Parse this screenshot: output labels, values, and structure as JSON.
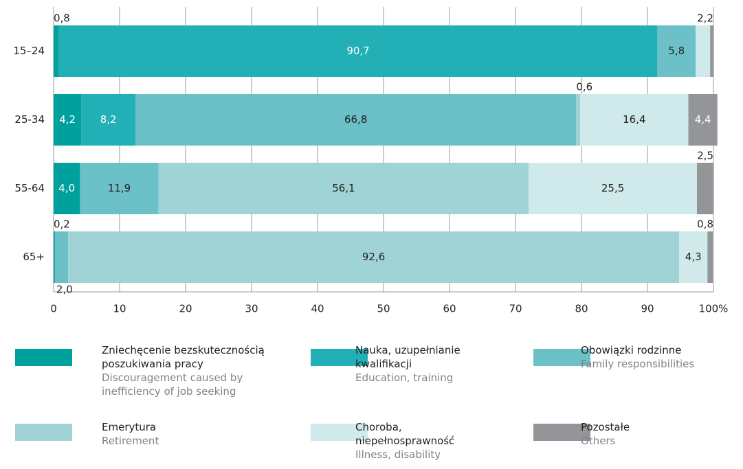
{
  "chart_data": {
    "type": "stacked-barh",
    "categories": [
      "15–24",
      "25-34",
      "55-64",
      "65+"
    ],
    "series": [
      {
        "name": "Zniechęcenie bezskutecznością poszukiwania pracy",
        "name_en": "Discouragement caused by inefficiency of job seeking",
        "color": "#00a19d",
        "values": [
          0.8,
          4.2,
          4.0,
          0.2
        ],
        "value_labels": [
          "0,8",
          "4,2",
          "4,0",
          "0,2"
        ]
      },
      {
        "name": "Nauka, uzupełnianie kwalifikacji",
        "name_en": "Education, training",
        "color": "#23afb6",
        "values": [
          90.7,
          8.2,
          null,
          null
        ],
        "value_labels": [
          "90,7",
          "8,2",
          null,
          null
        ]
      },
      {
        "name": "Obowiązki rodzinne",
        "name_en": "Family  responsibilities",
        "color": "#6cc0c7",
        "values": [
          5.8,
          66.8,
          11.9,
          2.0
        ],
        "value_labels": [
          "5,8",
          "66,8",
          "11,9",
          "2,0"
        ]
      },
      {
        "name": "Emerytura",
        "name_en": "Retirement",
        "color": "#9fd3d5",
        "values": [
          null,
          0.6,
          56.1,
          92.6
        ],
        "value_labels": [
          null,
          "0,6",
          "56,1",
          "92,6"
        ]
      },
      {
        "name": "Choroba, niepełnosprawność",
        "name_en": "Illness, disability",
        "color": "#d0e9eb",
        "values": [
          2.2,
          16.4,
          25.5,
          4.3
        ],
        "value_labels": [
          "2,2",
          "16,4",
          "25,5",
          "4,3"
        ]
      },
      {
        "name": "Pozostałe",
        "name_en": "Others",
        "color": "#939598",
        "values": [
          0.5,
          4.4,
          2.5,
          0.8
        ],
        "value_labels": [
          null,
          "4,4",
          "2,5",
          "0,8"
        ]
      }
    ],
    "xlim": [
      0,
      100
    ],
    "xticks": [
      0,
      10,
      20,
      30,
      40,
      50,
      60,
      70,
      80,
      90,
      {
        "value": 100,
        "label": "100%"
      }
    ],
    "grid": true
  }
}
